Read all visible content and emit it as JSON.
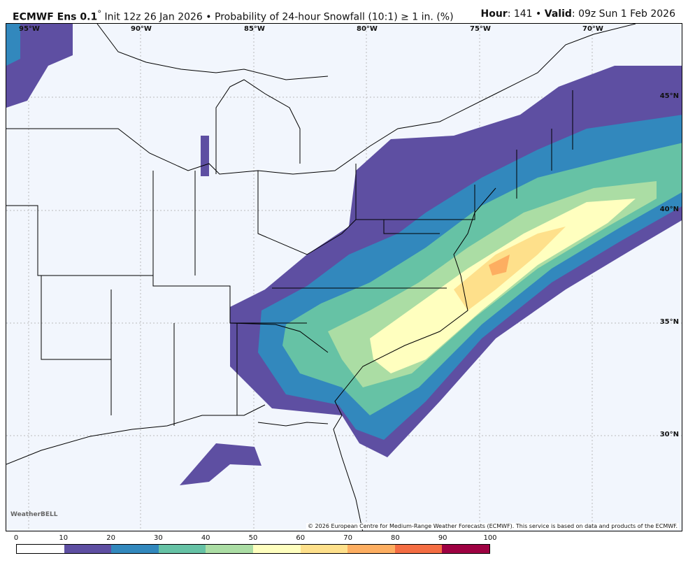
{
  "header": {
    "model": "ECMWF Ens 0.1",
    "degree": "°",
    "init": "Init 12z 26 Jan 2026",
    "bullet": "•",
    "product": "Probability of 24-hour Snowfall (10:1)  ≥  1 in. (%)",
    "hour_label": "Hour",
    "hour": ": 141",
    "valid_label": "Valid",
    "valid": ": 09z Sun 1 Feb 2026"
  },
  "map": {
    "lon_labels": [
      "95°W",
      "90°W",
      "85°W",
      "80°W",
      "75°W",
      "70°W"
    ],
    "lat_labels": [
      "45°N",
      "40°N",
      "35°N",
      "30°N"
    ],
    "copyright": "© 2026 European Centre for Medium-Range Weather Forecasts (ECMWF). This service is based on data and products of the ECMWF.",
    "logo": "WeatherBELL"
  },
  "colorbar": {
    "ticks": [
      "0",
      "10",
      "20",
      "30",
      "40",
      "50",
      "60",
      "70",
      "80",
      "90",
      "100"
    ],
    "colors": [
      "#ffffff",
      "#5e4fa2",
      "#3288bd",
      "#66c2a5",
      "#abdda4",
      "#ffffbf",
      "#fee08b",
      "#fdae61",
      "#f46d43",
      "#9e0142"
    ]
  }
}
